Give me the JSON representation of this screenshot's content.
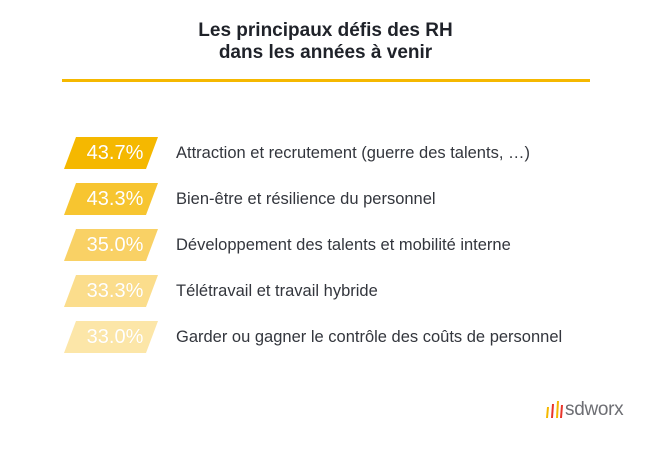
{
  "chart_data": {
    "type": "bar",
    "title_lines": [
      "Les principaux défis des RH",
      "dans les années à venir"
    ],
    "categories": [
      "Attraction et recrutement (guerre des talents, …)",
      "Bien-être et résilience du personnel",
      "Développement des talents et mobilité interne",
      "Télétravail et travail hybride",
      "Garder ou gagner le contrôle des coûts de personnel"
    ],
    "values": [
      43.7,
      43.3,
      35.0,
      33.3,
      33.0
    ],
    "value_labels": [
      "43.7%",
      "43.3%",
      "35.0%",
      "33.3%",
      "33.0%"
    ],
    "colors": [
      "#f5b800",
      "#f7c530",
      "#f9d165",
      "#fbdd8c",
      "#fce6a8"
    ]
  },
  "style": {
    "divider_color": "#f5b800"
  },
  "logo": {
    "text": "sdworx"
  }
}
